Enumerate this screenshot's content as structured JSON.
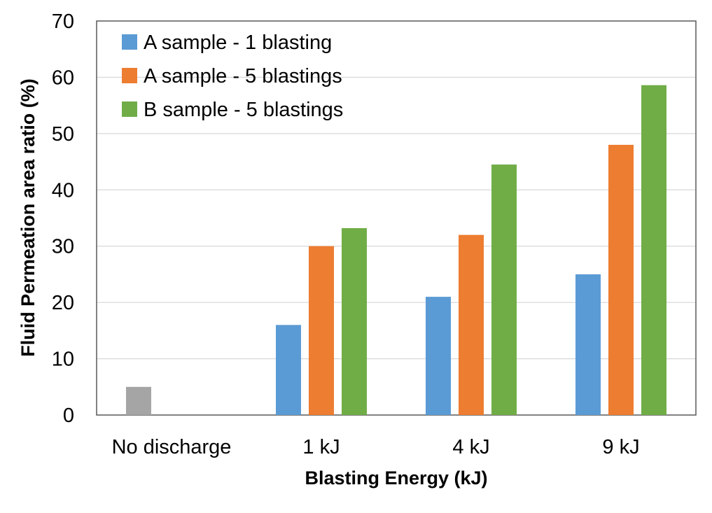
{
  "chart_data": {
    "type": "bar",
    "title": "",
    "xlabel": "Blasting Energy (kJ)",
    "ylabel": "Fluid Permeation area ratio (%)",
    "ylim": [
      0,
      70
    ],
    "yticks": [
      0,
      10,
      20,
      30,
      40,
      50,
      60,
      70
    ],
    "grid": true,
    "legend_position": "top-left",
    "categories": [
      "No discharge",
      "1 kJ",
      "4 kJ",
      "9 kJ"
    ],
    "series": [
      {
        "name": "A sample - 1 blasting",
        "color": "#5B9BD5",
        "values": [
          null,
          16,
          21,
          25
        ]
      },
      {
        "name": "A sample - 5 blastings",
        "color": "#ED7D31",
        "values": [
          null,
          30,
          32,
          48
        ]
      },
      {
        "name": "B sample - 5 blastings",
        "color": "#70AD47",
        "values": [
          null,
          33.2,
          44.5,
          58.6
        ]
      }
    ],
    "baseline": {
      "name": "No discharge",
      "color": "#A5A5A5",
      "category": "No discharge",
      "value": 5
    }
  }
}
